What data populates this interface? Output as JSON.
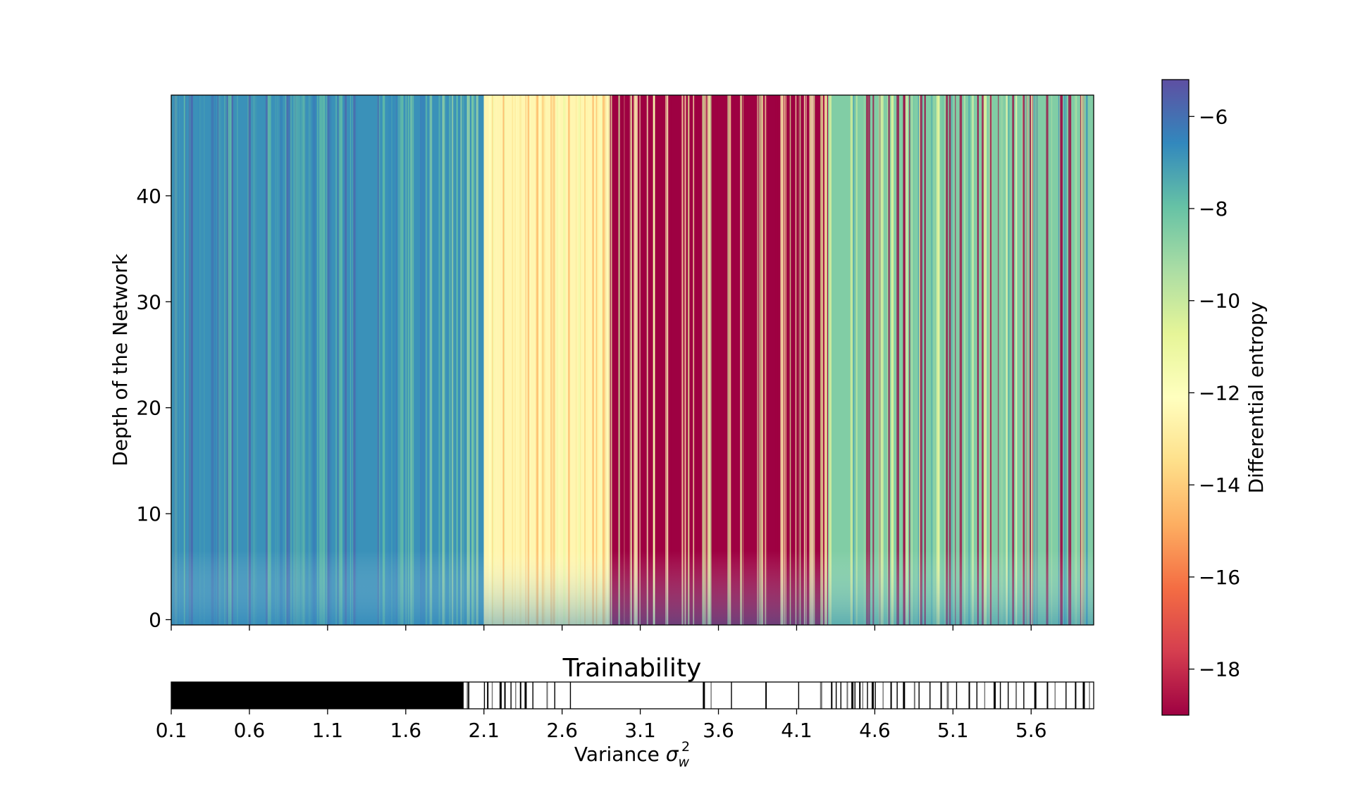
{
  "chart_data": [
    {
      "type": "heatmap",
      "title": "",
      "xlabel": "",
      "ylabel": "Depth of the Network",
      "xlim": [
        0.1,
        6.0
      ],
      "ylim": [
        -0.5,
        49.5
      ],
      "yticks": [
        0,
        10,
        20,
        30,
        40
      ],
      "xticks": [
        0.1,
        0.6,
        1.1,
        1.6,
        2.1,
        2.6,
        3.1,
        3.6,
        4.1,
        4.6,
        5.1,
        5.6
      ],
      "colormap": "Spectral",
      "colorbar": {
        "label": "Differential entropy",
        "range": [
          -19,
          -5.2
        ],
        "ticks": [
          -6,
          -8,
          -10,
          -12,
          -14,
          -16,
          -18
        ],
        "tick_labels": [
          "−6",
          "−8",
          "−10",
          "−12",
          "−14",
          "−16",
          "−18"
        ]
      },
      "regions": [
        {
          "x_range": [
            0.1,
            2.1
          ],
          "entropy": -6.8,
          "description": "blue"
        },
        {
          "x_range": [
            2.1,
            2.9
          ],
          "entropy": -12.5,
          "description": "yellow/orange"
        },
        {
          "x_range": [
            2.9,
            4.3
          ],
          "entropy": -19,
          "description": "collapsed red"
        },
        {
          "x_range": [
            4.3,
            6.0
          ],
          "entropy": -8.5,
          "description": "mixed with red stripes"
        }
      ]
    },
    {
      "type": "bar",
      "title": "Trainability",
      "xlabel": "Variance",
      "xlabel_symbol": "σ",
      "xlabel_sub": "w",
      "xlabel_sup": "2",
      "xlim": [
        0.1,
        6.0
      ],
      "xticks": [
        0.1,
        0.6,
        1.1,
        1.6,
        2.1,
        2.6,
        3.1,
        3.6,
        4.1,
        4.6,
        5.1,
        5.6
      ],
      "tick_labels": [
        "0.1",
        "0.6",
        "1.1",
        "1.6",
        "2.1",
        "2.6",
        "3.1",
        "3.6",
        "4.1",
        "4.6",
        "5.1",
        "5.6"
      ],
      "trainable_solid_range": [
        0.1,
        1.97
      ],
      "trainable_x": [
        1.99,
        2.0,
        2.1,
        2.12,
        2.15,
        2.2,
        2.23,
        2.27,
        2.3,
        2.33,
        2.36,
        2.41,
        2.5,
        2.55,
        2.65,
        3.5,
        3.55,
        3.68,
        3.9,
        4.11,
        4.25,
        4.32,
        4.35,
        4.38,
        4.42,
        4.45,
        4.47,
        4.5,
        4.52,
        4.55,
        4.58,
        4.6,
        4.65,
        4.7,
        4.74,
        4.78,
        4.85,
        4.88,
        4.95,
        5.02,
        5.06,
        5.12,
        5.2,
        5.25,
        5.3,
        5.36,
        5.4,
        5.45,
        5.5,
        5.55,
        5.62,
        5.7,
        5.75,
        5.82,
        5.88,
        5.93,
        5.97
      ]
    }
  ]
}
